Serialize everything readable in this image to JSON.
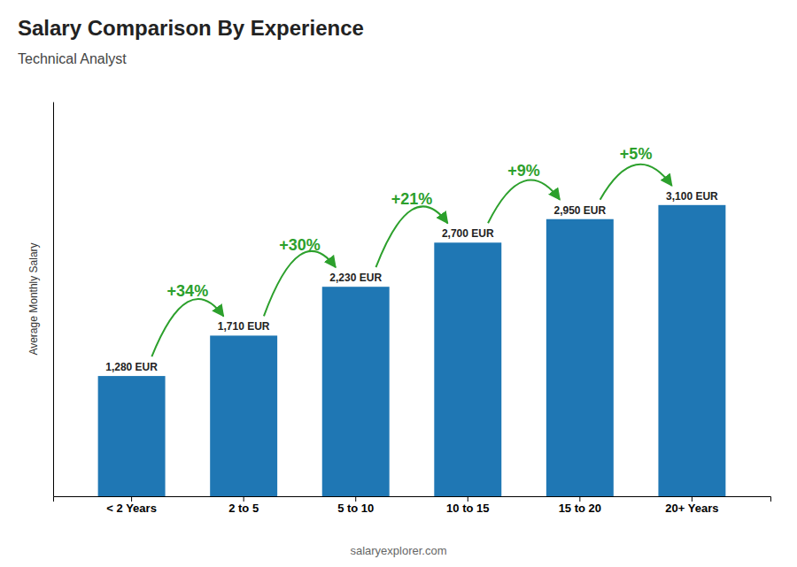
{
  "chart_data": {
    "type": "bar",
    "title": "Salary Comparison By Experience",
    "subtitle": "Technical Analyst",
    "ylabel": "Average Monthly Salary",
    "categories": [
      "< 2 Years",
      "2 to 5",
      "5 to 10",
      "10 to 15",
      "15 to 20",
      "20+ Years"
    ],
    "values": [
      1280,
      1710,
      2230,
      2700,
      2950,
      3100
    ],
    "value_labels": [
      "1,280 EUR",
      "1,710 EUR",
      "2,230 EUR",
      "2,700 EUR",
      "2,950 EUR",
      "3,100 EUR"
    ],
    "data_labels": true,
    "annotations": [
      "+34%",
      "+30%",
      "+21%",
      "+9%",
      "+5%"
    ],
    "source": "salaryexplorer.com",
    "ylim": [
      0,
      4200
    ],
    "tick_labels": "x"
  }
}
